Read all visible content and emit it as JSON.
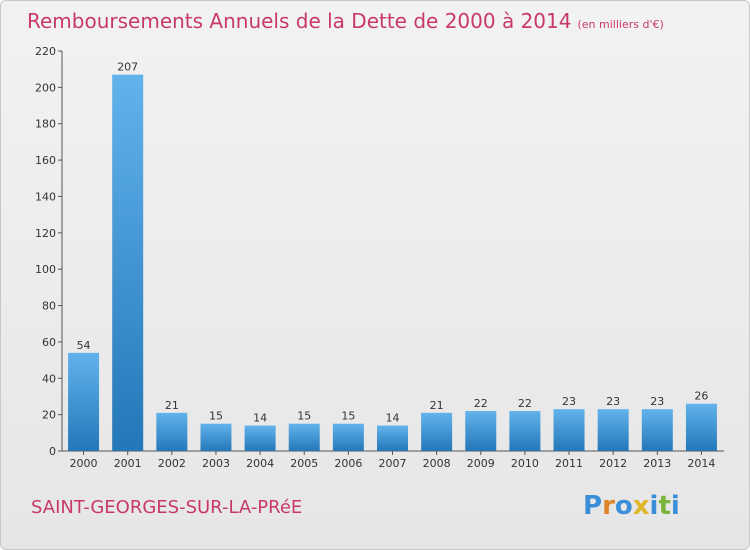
{
  "title": "Remboursements Annuels de la Dette de 2000 à 2014",
  "title_unit": "(en milliers d'€)",
  "town": "SAINT-GEORGES-SUR-LA-PRéE",
  "logo": {
    "letters": [
      "P",
      "r",
      "o",
      "x",
      "i",
      "t",
      "i"
    ],
    "colors": [
      "#3a8fd8",
      "#e0842a",
      "#3a8fd8",
      "#e0b62a",
      "#3a8fd8",
      "#7ab43a",
      "#3a8fd8"
    ]
  },
  "colors": {
    "title": "#c8396a",
    "bar_top": "#62b3ec",
    "bar_bottom": "#2477b8"
  },
  "chart_data": {
    "type": "bar",
    "title": "Remboursements Annuels de la Dette de 2000 à 2014",
    "xlabel": "",
    "ylabel": "",
    "ylim": [
      0,
      220
    ],
    "yticks": [
      0,
      20,
      40,
      60,
      80,
      100,
      120,
      140,
      160,
      180,
      200,
      220
    ],
    "grid": false,
    "categories": [
      "2000",
      "2001",
      "2002",
      "2003",
      "2004",
      "2005",
      "2006",
      "2007",
      "2008",
      "2009",
      "2010",
      "2011",
      "2012",
      "2013",
      "2014"
    ],
    "values": [
      54,
      207,
      21,
      15,
      14,
      15,
      15,
      14,
      21,
      22,
      22,
      23,
      23,
      23,
      26
    ]
  }
}
